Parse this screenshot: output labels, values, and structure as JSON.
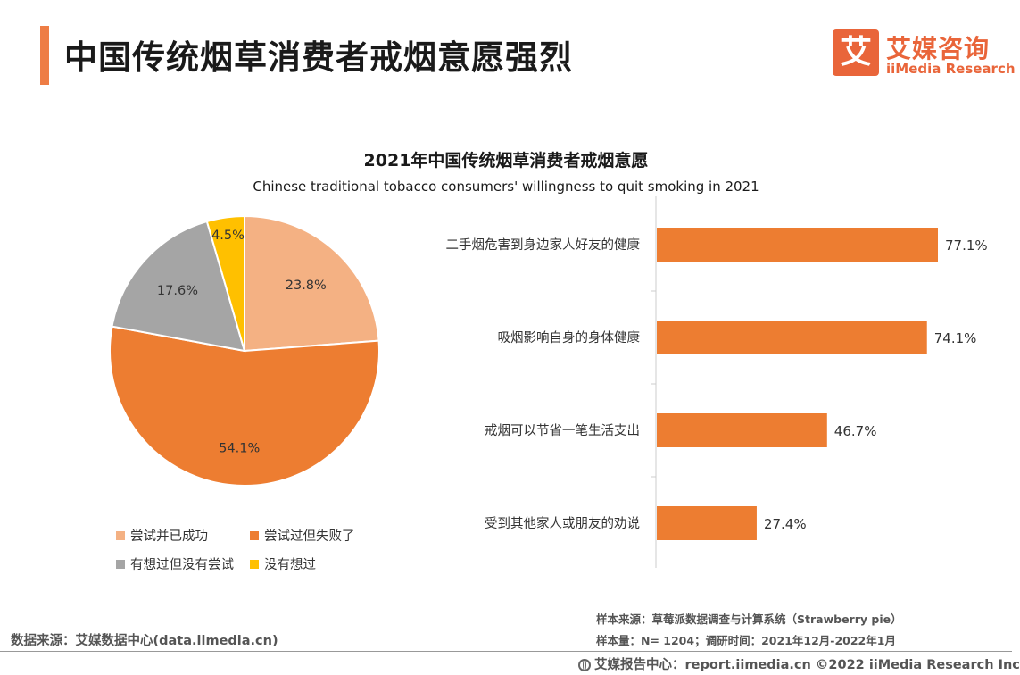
{
  "header": {
    "title": "中国传统烟草消费者戒烟意愿强烈",
    "logo_char": "艾",
    "logo_cn": "艾媒咨询",
    "logo_en": "iiMedia Research"
  },
  "colors": {
    "accent": "#ee7d45",
    "slice_success": "#f4b183",
    "slice_failed": "#ed7d31",
    "slice_thought": "#a5a5a5",
    "slice_never": "#ffc000",
    "bar": "#ed7d31"
  },
  "chart_data": [
    {
      "type": "pie",
      "title": "2021年中国传统烟草消费者戒烟意愿",
      "subtitle": "Chinese traditional tobacco consumers' willingness to quit smoking in 2021",
      "categories": [
        "尝试并已成功",
        "尝试过但失败了",
        "有想过但没有尝试",
        "没有想过"
      ],
      "values": [
        23.8,
        54.1,
        17.6,
        4.5
      ],
      "labels": [
        "23.8%",
        "54.1%",
        "17.6%",
        "4.5%"
      ],
      "legend_position": "bottom-left"
    },
    {
      "type": "bar",
      "orientation": "horizontal",
      "categories": [
        "二手烟危害到身边家人好友的健康",
        "吸烟影响自身的身体健康",
        "戒烟可以节省一笔生活支出",
        "受到其他家人或朋友的劝说"
      ],
      "values": [
        77.1,
        74.1,
        46.7,
        27.4
      ],
      "labels": [
        "77.1%",
        "74.1%",
        "46.7%",
        "27.4%"
      ],
      "xlim": [
        0,
        100
      ]
    }
  ],
  "footer": {
    "source_left": "数据来源：艾媒数据中心(data.iimedia.cn)",
    "sample_source": "样本来源：草莓派数据调查与计算系统（Strawberry pie）",
    "sample_size": "样本量：N= 1204；调研时间：2021年12月-2022年1月",
    "report_center": "艾媒报告中心：report.iimedia.cn   ©2022  iiMedia Research  Inc"
  }
}
